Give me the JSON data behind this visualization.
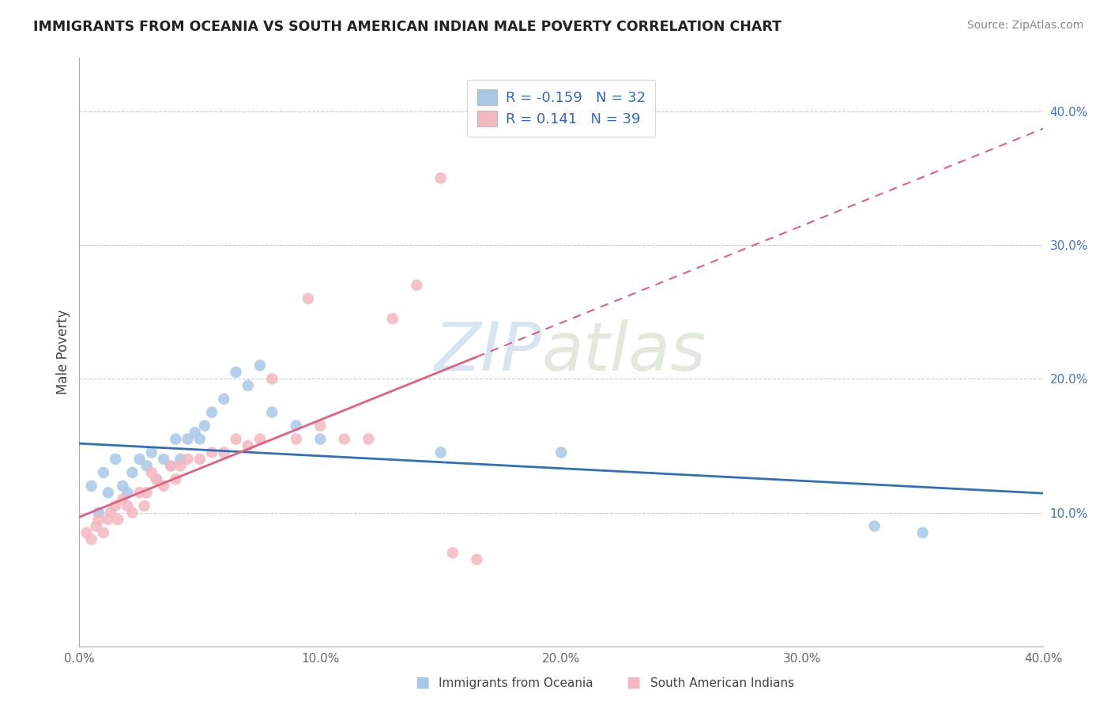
{
  "title": "IMMIGRANTS FROM OCEANIA VS SOUTH AMERICAN INDIAN MALE POVERTY CORRELATION CHART",
  "source": "Source: ZipAtlas.com",
  "ylabel": "Male Poverty",
  "xlim": [
    0.0,
    0.4
  ],
  "ylim": [
    0.0,
    0.44
  ],
  "xticks": [
    0.0,
    0.1,
    0.2,
    0.3,
    0.4
  ],
  "xtick_labels": [
    "0.0%",
    "10.0%",
    "20.0%",
    "30.0%",
    "40.0%"
  ],
  "yticks": [
    0.1,
    0.2,
    0.3,
    0.4
  ],
  "ytick_labels": [
    "10.0%",
    "20.0%",
    "30.0%",
    "40.0%"
  ],
  "legend_R_blue": "-0.159",
  "legend_N_blue": "32",
  "legend_R_pink": " 0.141",
  "legend_N_pink": "39",
  "blue_color": "#a8c8e8",
  "pink_color": "#f4b8c0",
  "blue_line_color": "#3070b8",
  "pink_line_color": "#e06080",
  "watermark_zip": "ZIP",
  "watermark_atlas": "atlas",
  "blue_scatter_x": [
    0.005,
    0.008,
    0.01,
    0.012,
    0.015,
    0.018,
    0.02,
    0.022,
    0.025,
    0.028,
    0.03,
    0.032,
    0.035,
    0.038,
    0.04,
    0.042,
    0.045,
    0.048,
    0.05,
    0.052,
    0.055,
    0.06,
    0.065,
    0.07,
    0.075,
    0.08,
    0.09,
    0.1,
    0.15,
    0.2,
    0.33,
    0.35
  ],
  "blue_scatter_y": [
    0.12,
    0.1,
    0.13,
    0.115,
    0.14,
    0.12,
    0.115,
    0.13,
    0.14,
    0.135,
    0.145,
    0.125,
    0.14,
    0.135,
    0.155,
    0.14,
    0.155,
    0.16,
    0.155,
    0.165,
    0.175,
    0.185,
    0.205,
    0.195,
    0.21,
    0.175,
    0.165,
    0.155,
    0.145,
    0.145,
    0.09,
    0.085
  ],
  "pink_scatter_x": [
    0.003,
    0.005,
    0.007,
    0.008,
    0.01,
    0.012,
    0.013,
    0.015,
    0.016,
    0.018,
    0.02,
    0.022,
    0.025,
    0.027,
    0.028,
    0.03,
    0.032,
    0.035,
    0.038,
    0.04,
    0.042,
    0.045,
    0.05,
    0.055,
    0.06,
    0.065,
    0.07,
    0.075,
    0.08,
    0.09,
    0.095,
    0.1,
    0.11,
    0.12,
    0.13,
    0.14,
    0.15,
    0.155,
    0.165
  ],
  "pink_scatter_y": [
    0.085,
    0.08,
    0.09,
    0.095,
    0.085,
    0.095,
    0.1,
    0.105,
    0.095,
    0.11,
    0.105,
    0.1,
    0.115,
    0.105,
    0.115,
    0.13,
    0.125,
    0.12,
    0.135,
    0.125,
    0.135,
    0.14,
    0.14,
    0.145,
    0.145,
    0.155,
    0.15,
    0.155,
    0.2,
    0.155,
    0.26,
    0.165,
    0.155,
    0.155,
    0.245,
    0.27,
    0.35,
    0.07,
    0.065
  ]
}
